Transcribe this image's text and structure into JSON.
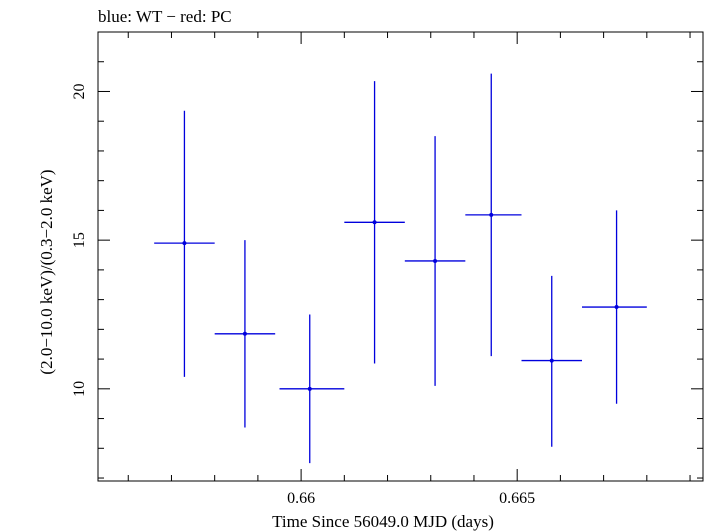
{
  "chart_data": {
    "type": "scatter",
    "title": "blue: WT − red: PC",
    "xlabel": "Time Since 56049.0 MJD (days)",
    "ylabel": "(2.0−10.0 keV)/(0.3−2.0 keV)",
    "xlim": [
      0.6553,
      0.6693
    ],
    "ylim": [
      6.9,
      22.0
    ],
    "xticks_major": [
      0.66,
      0.665
    ],
    "xticklabels": [
      "0.66",
      "0.665"
    ],
    "yticks_major": [
      10,
      15,
      20
    ],
    "yticklabels": [
      "10",
      "15",
      "20"
    ],
    "series": [
      {
        "color": "#0000dd",
        "points": [
          {
            "x": 0.6573,
            "xlo": 0.6566,
            "xhi": 0.658,
            "y": 14.9,
            "ylo": 10.4,
            "yhi": 19.35
          },
          {
            "x": 0.6587,
            "xlo": 0.658,
            "xhi": 0.6594,
            "y": 11.85,
            "ylo": 8.7,
            "yhi": 15.0
          },
          {
            "x": 0.6602,
            "xlo": 0.6595,
            "xhi": 0.661,
            "y": 10.0,
            "ylo": 7.5,
            "yhi": 12.5
          },
          {
            "x": 0.6617,
            "xlo": 0.661,
            "xhi": 0.6624,
            "y": 15.6,
            "ylo": 10.85,
            "yhi": 20.35
          },
          {
            "x": 0.6631,
            "xlo": 0.6624,
            "xhi": 0.6638,
            "y": 14.3,
            "ylo": 10.1,
            "yhi": 18.5
          },
          {
            "x": 0.6644,
            "xlo": 0.6638,
            "xhi": 0.6651,
            "y": 15.85,
            "ylo": 11.1,
            "yhi": 20.6
          },
          {
            "x": 0.6658,
            "xlo": 0.6651,
            "xhi": 0.6665,
            "y": 10.95,
            "ylo": 8.05,
            "yhi": 13.8
          },
          {
            "x": 0.6673,
            "xlo": 0.6665,
            "xhi": 0.668,
            "y": 12.75,
            "ylo": 9.5,
            "yhi": 16.0
          }
        ]
      }
    ]
  }
}
